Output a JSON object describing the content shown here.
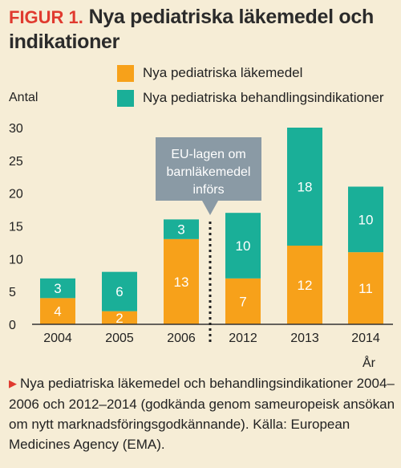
{
  "figure": {
    "label": "FIGUR 1.",
    "title": "Nya pediatriska läkemedel och indikationer",
    "unit_label": "Antal",
    "year_label": "År",
    "callout_lines": [
      "EU-lagen om",
      "barnläkemedel",
      "införs"
    ],
    "caption": "Nya pediatriska läkemedel och behandlingsindikationer 2004–2006 och 2012–2014 (godkända genom sameuropeisk ansökan om nytt marknadsföringsgodkännande). Källa: European Medicines Agency (EMA)."
  },
  "colors": {
    "drugs": "#f7a11a",
    "indications": "#1aaf98",
    "callout": "#8a9aa5",
    "title_accent": "#e03a2f",
    "background": "#f6edd6"
  },
  "chart_data": {
    "type": "bar",
    "stacked": true,
    "categories": [
      "2004",
      "2005",
      "2006",
      "2012",
      "2013",
      "2014"
    ],
    "series": [
      {
        "name": "Nya pediatriska läkemedel",
        "values": [
          4,
          2,
          13,
          7,
          12,
          11
        ]
      },
      {
        "name": "Nya pediatriska behandlingsindikationer",
        "values": [
          3,
          6,
          3,
          10,
          18,
          10
        ]
      }
    ],
    "ylabel": "Antal",
    "xlabel": "År",
    "ylim": [
      0,
      30
    ],
    "yticks": [
      0,
      5,
      10,
      15,
      20,
      25,
      30
    ],
    "grid": false,
    "legend": "top",
    "annotation": {
      "text": "EU-lagen om barnläkemedel införs",
      "between": [
        "2006",
        "2012"
      ]
    }
  }
}
